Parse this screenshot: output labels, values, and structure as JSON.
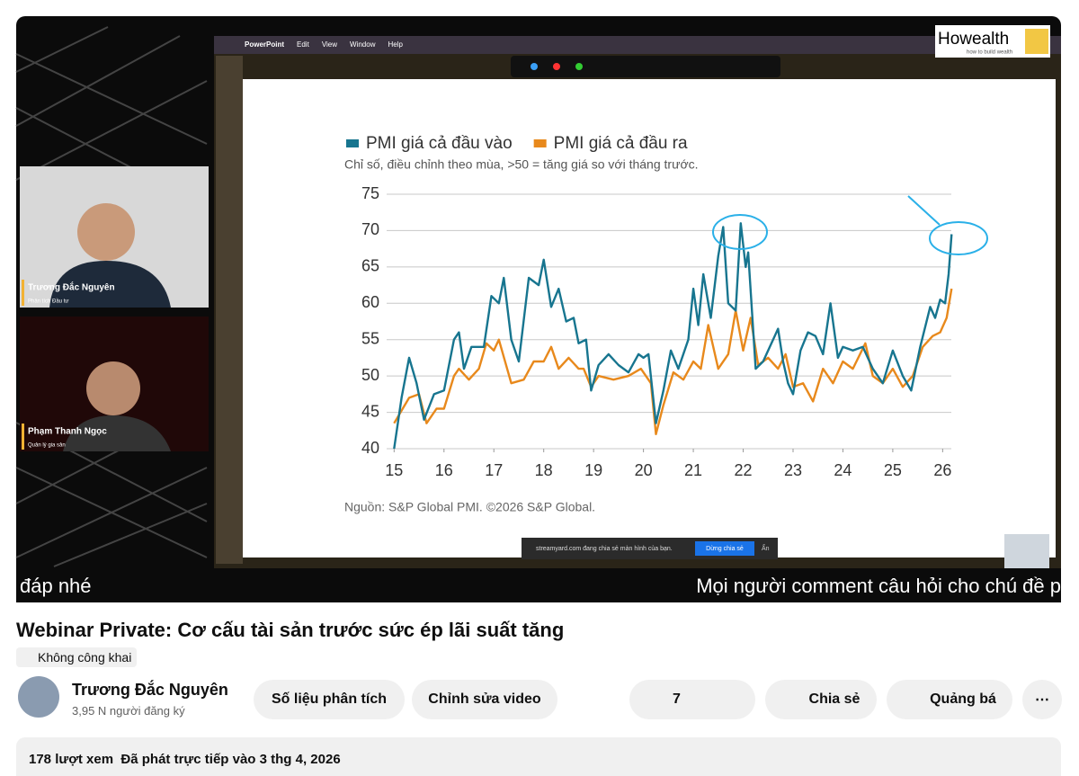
{
  "menu": [
    "PowerPoint",
    "Edit",
    "View",
    "Window",
    "Help"
  ],
  "logo": {
    "name": "Howealth",
    "tagline": "how to build wealth"
  },
  "participants": [
    {
      "name": "Trương Đắc Nguyên",
      "role": "Phân tích Đầu tư"
    },
    {
      "name": "Phạm Thanh Ngọc",
      "role": "Quản lý gia sản"
    }
  ],
  "share_bar": {
    "text": "streamyard.com đang chia sẻ màn hình của bạn.",
    "stop": "Dừng chia sẻ",
    "hide": "Ẩn"
  },
  "captions": {
    "left": "đáp nhé",
    "right": "Mọi người comment câu hỏi cho chú đề p"
  },
  "chart_data": {
    "type": "line",
    "subtitle": "Chỉ số, điều chỉnh theo mùa, >50 = tăng giá so với tháng trước.",
    "source": "Nguồn: S&P Global PMI. ©2026 S&P Global.",
    "xlim": [
      14.85,
      26.3
    ],
    "ylim": [
      40,
      75
    ],
    "xticks": [
      15,
      16,
      17,
      18,
      19,
      20,
      21,
      22,
      23,
      24,
      25,
      26
    ],
    "yticks": [
      40,
      45,
      50,
      55,
      60,
      65,
      70,
      75
    ],
    "grid": true,
    "series": [
      {
        "name": "PMI giá cả đầu vào",
        "color": "#17758f",
        "x": [
          15.0,
          15.15,
          15.3,
          15.45,
          15.6,
          15.8,
          16.0,
          16.2,
          16.3,
          16.4,
          16.55,
          16.8,
          16.95,
          17.1,
          17.2,
          17.35,
          17.5,
          17.7,
          17.9,
          18.0,
          18.15,
          18.3,
          18.45,
          18.6,
          18.7,
          18.85,
          18.95,
          19.1,
          19.3,
          19.5,
          19.7,
          19.9,
          20.0,
          20.1,
          20.25,
          20.4,
          20.55,
          20.7,
          20.9,
          21.0,
          21.1,
          21.2,
          21.35,
          21.5,
          21.6,
          21.7,
          21.85,
          21.95,
          22.05,
          22.1,
          22.25,
          22.4,
          22.6,
          22.7,
          22.8,
          22.9,
          23.0,
          23.15,
          23.3,
          23.45,
          23.6,
          23.75,
          23.9,
          24.0,
          24.2,
          24.4,
          24.6,
          24.8,
          25.0,
          25.2,
          25.37,
          25.55,
          25.75,
          25.85,
          25.95,
          26.05,
          26.12,
          26.18
        ],
        "values": [
          40,
          47,
          52.5,
          49,
          44,
          47.5,
          48,
          55,
          56,
          51,
          54,
          54,
          61,
          60,
          63.5,
          55,
          52,
          63.5,
          62.5,
          66,
          59.5,
          62,
          57.5,
          58,
          54.5,
          55,
          48,
          51.5,
          53,
          51.5,
          50.5,
          53,
          52.5,
          53,
          43.5,
          48,
          53.5,
          51,
          55,
          62,
          57,
          64,
          58,
          66.5,
          70.5,
          60,
          59,
          71,
          65,
          67,
          51,
          52,
          55,
          56.5,
          52,
          49,
          47.5,
          53.5,
          56,
          55.5,
          53,
          60,
          52.5,
          54,
          53.5,
          54,
          51,
          49,
          53.5,
          50,
          48,
          54,
          59.5,
          58,
          60.5,
          60,
          64,
          69.5
        ]
      },
      {
        "name": "PMI giá cả đầu ra",
        "color": "#e8891c",
        "x": [
          15.0,
          15.3,
          15.5,
          15.65,
          15.85,
          16.0,
          16.2,
          16.3,
          16.5,
          16.7,
          16.85,
          17.0,
          17.1,
          17.35,
          17.6,
          17.8,
          18.0,
          18.15,
          18.3,
          18.5,
          18.7,
          18.8,
          18.95,
          19.1,
          19.4,
          19.7,
          19.95,
          20.15,
          20.25,
          20.4,
          20.6,
          20.8,
          21.0,
          21.15,
          21.3,
          21.5,
          21.7,
          21.85,
          22.0,
          22.15,
          22.3,
          22.5,
          22.7,
          22.85,
          23.0,
          23.2,
          23.4,
          23.6,
          23.8,
          24.0,
          24.2,
          24.45,
          24.6,
          24.8,
          25.0,
          25.2,
          25.4,
          25.6,
          25.8,
          25.95,
          26.08,
          26.18
        ],
        "values": [
          43.5,
          47,
          47.5,
          43.5,
          45.5,
          45.5,
          50,
          51,
          49.5,
          51,
          54.5,
          53.5,
          55,
          49,
          49.5,
          52,
          52,
          54,
          51,
          52.5,
          51,
          51,
          48.5,
          50,
          49.5,
          50,
          51,
          49,
          42,
          46,
          50.5,
          49.5,
          52,
          51,
          57,
          51,
          53,
          59,
          53.5,
          58,
          51.5,
          52.5,
          51,
          53,
          48.5,
          49,
          46.5,
          51,
          49,
          52,
          51,
          54.5,
          50,
          49,
          51,
          48.5,
          50,
          54,
          55.5,
          56,
          58,
          62
        ]
      }
    ]
  },
  "video": {
    "title": "Webinar Private: Cơ cấu tài sản trước sức ép lãi suất tăng",
    "visibility": "Không công khai"
  },
  "channel": {
    "name": "Trương Đắc Nguyên",
    "subscribers": "3,95 N người đăng ký"
  },
  "buttons": {
    "analytics": "Số liệu phân tích",
    "edit": "Chỉnh sửa video",
    "likes": "7",
    "share": "Chia sẻ",
    "promote": "Quảng bá"
  },
  "description": {
    "stats": "178 lượt xem  Đã phát trực tiếp vào 3 thg 4, 2026"
  }
}
